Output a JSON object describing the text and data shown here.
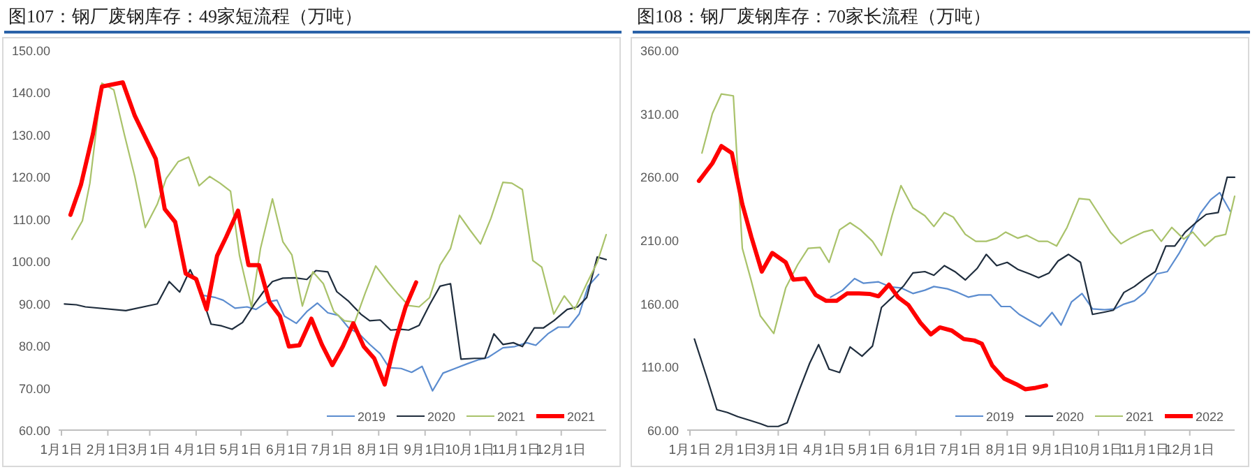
{
  "chart_data": [
    {
      "type": "line",
      "title": "图107：钢厂废钢库存：49家短流程（万吨）",
      "legend": "bottom right",
      "grid": false,
      "xlim": [
        "--01-01",
        "--12-31"
      ],
      "xticks": [
        {
          "value": "--01-01",
          "label": "1月1日"
        },
        {
          "value": "--02-01",
          "label": "2月1日"
        },
        {
          "value": "--03-01",
          "label": "3月1日"
        },
        {
          "value": "--04-01",
          "label": "4月1日"
        },
        {
          "value": "--05-01",
          "label": "5月1日"
        },
        {
          "value": "--06-01",
          "label": "6月1日"
        },
        {
          "value": "--07-01",
          "label": "7月1日"
        },
        {
          "value": "--08-01",
          "label": "8月1日"
        },
        {
          "value": "--09-01",
          "label": "9月1日"
        },
        {
          "value": "--10-01",
          "label": "10月1日"
        },
        {
          "value": "--11-01",
          "label": "11月1日"
        },
        {
          "value": "--12-01",
          "label": "12月1日"
        }
      ],
      "ylim": [
        60,
        150
      ],
      "yticks": [
        {
          "value": 60,
          "label": "60.00"
        },
        {
          "value": 70,
          "label": "70.00"
        },
        {
          "value": 80,
          "label": "80.00"
        },
        {
          "value": 90,
          "label": "90.00"
        },
        {
          "value": 100,
          "label": "100.00"
        },
        {
          "value": 110,
          "label": "110.00"
        },
        {
          "value": 120,
          "label": "120.00"
        },
        {
          "value": 130,
          "label": "130.00"
        },
        {
          "value": 140,
          "label": "140.00"
        },
        {
          "value": 150,
          "label": "150.00"
        }
      ],
      "series": [
        {
          "name": "2019",
          "color": "#5b8ccf",
          "x": [
            "--04-06",
            "--04-14",
            "--04-19",
            "--04-27",
            "--05-05",
            "--05-11",
            "--05-18",
            "--05-25",
            "--05-30",
            "--06-07",
            "--06-14",
            "--06-21",
            "--06-28",
            "--07-05",
            "--07-12",
            "--07-19",
            "--07-26",
            "--08-02",
            "--08-08",
            "--08-16",
            "--08-23",
            "--08-30",
            "--09-06",
            "--09-13",
            "--09-21",
            "--09-29",
            "--10-07",
            "--10-13",
            "--10-23",
            "--10-31",
            "--11-08",
            "--11-14",
            "--11-22",
            "--11-29",
            "--12-06",
            "--12-13",
            "--12-19",
            "--12-26"
          ],
          "values": [
            91.9,
            91.4,
            90.8,
            88.9,
            89.2,
            88.6,
            90.3,
            90.8,
            87.0,
            85.3,
            88.1,
            90.1,
            87.8,
            87.2,
            84.2,
            82.8,
            80.3,
            78.1,
            74.8,
            74.6,
            73.7,
            75.1,
            69.3,
            73.5,
            74.6,
            75.7,
            76.7,
            77.2,
            79.5,
            79.8,
            80.7,
            80.1,
            82.8,
            84.4,
            84.4,
            87.5,
            94.1,
            96.9
          ]
        },
        {
          "name": "2020",
          "color": "#1f2d3d",
          "x": [
            "--01-03",
            "--01-11",
            "--01-17",
            "--02-13",
            "--03-06",
            "--03-14",
            "--03-21",
            "--03-28",
            "--04-03",
            "--04-11",
            "--04-18",
            "--04-25",
            "--05-02",
            "--05-10",
            "--05-16",
            "--05-22",
            "--05-29",
            "--06-06",
            "--06-14",
            "--06-20",
            "--06-28",
            "--07-04",
            "--07-12",
            "--07-20",
            "--07-26",
            "--08-02",
            "--08-09",
            "--08-16",
            "--08-21",
            "--08-28",
            "--09-04",
            "--09-11",
            "--09-18",
            "--09-25",
            "--10-04",
            "--10-11",
            "--10-17",
            "--10-23",
            "--10-30",
            "--11-05",
            "--11-13",
            "--11-19",
            "--11-26",
            "--12-05",
            "--12-12",
            "--12-18",
            "--12-25",
            "--12-31"
          ],
          "values": [
            89.9,
            89.7,
            89.2,
            88.3,
            89.9,
            95.2,
            92.7,
            98.0,
            93.6,
            85.1,
            84.7,
            83.9,
            85.5,
            89.9,
            92.8,
            95.2,
            96.0,
            96.1,
            95.7,
            97.8,
            97.5,
            92.8,
            90.5,
            87.5,
            85.9,
            86.1,
            83.7,
            83.9,
            83.7,
            84.8,
            89.7,
            94.1,
            94.7,
            76.8,
            77.0,
            77.0,
            82.8,
            80.3,
            80.7,
            79.8,
            84.2,
            84.2,
            85.9,
            88.6,
            89.2,
            91.4,
            101.0,
            100.4
          ]
        },
        {
          "name": "2021",
          "color": "#a9c26a",
          "x": [
            "--01-08",
            "--01-15",
            "--01-20",
            "--01-28",
            "--02-05",
            "--02-12",
            "--02-19",
            "--02-26",
            "--03-06",
            "--03-12",
            "--03-20",
            "--03-27",
            "--04-03",
            "--04-10",
            "--04-17",
            "--04-24",
            "--04-30",
            "--05-08",
            "--05-14",
            "--05-22",
            "--05-29",
            "--06-04",
            "--06-11",
            "--06-18",
            "--06-25",
            "--07-02",
            "--07-09",
            "--07-16",
            "--07-23",
            "--07-30",
            "--08-07",
            "--08-14",
            "--08-21",
            "--08-28",
            "--09-04",
            "--09-11",
            "--09-18",
            "--09-24",
            "--10-01",
            "--10-08",
            "--10-15",
            "--10-23",
            "--10-29",
            "--11-05",
            "--11-12",
            "--11-18",
            "--11-26",
            "--12-03",
            "--12-10",
            "--12-18",
            "--12-25",
            "--12-31"
          ],
          "values": [
            105.2,
            109.6,
            118.5,
            142.2,
            140.6,
            130.1,
            120.1,
            108.0,
            113.5,
            119.6,
            123.6,
            124.7,
            117.9,
            120.1,
            118.5,
            116.6,
            101.3,
            89.2,
            103.0,
            114.8,
            104.6,
            101.5,
            89.4,
            97.5,
            94.7,
            88.1,
            85.9,
            85.6,
            92.5,
            98.9,
            95.2,
            92.2,
            89.5,
            89.2,
            91.4,
            99.1,
            103.0,
            110.9,
            107.4,
            104.1,
            110.2,
            118.7,
            118.5,
            117.0,
            100.2,
            98.6,
            87.5,
            91.8,
            88.6,
            94.7,
            99.7,
            106.3
          ]
        },
        {
          "name": "2021",
          "color": "#ff0000",
          "x": [
            "--01-07",
            "--01-14",
            "--01-22",
            "--01-28",
            "--02-04",
            "--02-11",
            "--02-19",
            "--02-25",
            "--03-05",
            "--03-11",
            "--03-18",
            "--03-25",
            "--04-01",
            "--04-08",
            "--04-15",
            "--04-21",
            "--04-29",
            "--05-06",
            "--05-13",
            "--05-20",
            "--05-27",
            "--06-02",
            "--06-09",
            "--06-17",
            "--06-24",
            "--07-01",
            "--07-08",
            "--07-15",
            "--07-22",
            "--07-29",
            "--08-05",
            "--08-12",
            "--08-19",
            "--08-26"
          ],
          "values": [
            111.0,
            118.1,
            130.1,
            141.4,
            141.9,
            142.4,
            134.5,
            130.1,
            124.3,
            112.4,
            109.3,
            97.1,
            95.8,
            88.6,
            101.3,
            105.7,
            112.0,
            99.1,
            99.1,
            90.3,
            87.0,
            79.8,
            80.1,
            86.4,
            80.3,
            75.4,
            79.8,
            85.3,
            79.8,
            77.0,
            70.8,
            80.9,
            89.2,
            95.0
          ]
        }
      ]
    },
    {
      "type": "line",
      "title": "图108：钢厂废钢库存：70家长流程（万吨）",
      "legend": "bottom right",
      "grid": false,
      "xlim": [
        "--01-01",
        "--12-31"
      ],
      "xticks": [
        {
          "value": "--01-01",
          "label": "1月1日"
        },
        {
          "value": "--02-01",
          "label": "2月1日"
        },
        {
          "value": "--03-01",
          "label": "3月1日"
        },
        {
          "value": "--04-01",
          "label": "4月1日"
        },
        {
          "value": "--05-01",
          "label": "5月1日"
        },
        {
          "value": "--06-01",
          "label": "6月1日"
        },
        {
          "value": "--07-01",
          "label": "7月1日"
        },
        {
          "value": "--08-01",
          "label": "8月1日"
        },
        {
          "value": "--09-01",
          "label": "9月1日"
        },
        {
          "value": "--10-01",
          "label": "10月1日"
        },
        {
          "value": "--11-01",
          "label": "11月1日"
        },
        {
          "value": "--12-01",
          "label": "12月1日"
        }
      ],
      "ylim": [
        60,
        360
      ],
      "yticks": [
        {
          "value": 60,
          "label": "60.00"
        },
        {
          "value": 110,
          "label": "110.00"
        },
        {
          "value": 160,
          "label": "160.00"
        },
        {
          "value": 210,
          "label": "210.00"
        },
        {
          "value": 260,
          "label": "260.00"
        },
        {
          "value": 310,
          "label": "310.00"
        },
        {
          "value": 360,
          "label": "360.00"
        }
      ],
      "series": [
        {
          "name": "2019",
          "color": "#5b8ccf",
          "x": [
            "--04-05",
            "--04-13",
            "--04-21",
            "--04-27",
            "--05-07",
            "--05-15",
            "--05-22",
            "--05-30",
            "--06-07",
            "--06-13",
            "--06-22",
            "--06-29",
            "--07-06",
            "--07-13",
            "--07-21",
            "--07-28",
            "--08-03",
            "--08-09",
            "--08-16",
            "--08-23",
            "--08-31",
            "--09-06",
            "--09-13",
            "--09-20",
            "--09-27",
            "--10-05",
            "--10-12",
            "--10-18",
            "--10-25",
            "--11-01",
            "--11-09",
            "--11-16",
            "--11-24",
            "--12-01",
            "--12-08",
            "--12-15",
            "--12-21",
            "--12-28"
          ],
          "values": [
            165.0,
            170.5,
            179.7,
            176.0,
            177.1,
            173.1,
            172.3,
            167.9,
            170.5,
            173.4,
            171.6,
            168.7,
            165.0,
            166.8,
            166.8,
            157.6,
            157.6,
            151.4,
            146.6,
            141.9,
            152.9,
            143.0,
            161.3,
            167.9,
            155.8,
            155.1,
            155.8,
            159.5,
            162.1,
            168.7,
            183.4,
            185.2,
            199.9,
            214.6,
            231.1,
            242.1,
            247.6,
            232.9
          ]
        },
        {
          "name": "2020",
          "color": "#1f2d3d",
          "x": [
            "--01-04",
            "--01-12",
            "--01-19",
            "--01-26",
            "--02-02",
            "--02-10",
            "--02-17",
            "--02-22",
            "--03-01",
            "--03-07",
            "--03-15",
            "--03-22",
            "--03-28",
            "--04-04",
            "--04-11",
            "--04-18",
            "--04-26",
            "--05-03",
            "--05-09",
            "--05-17",
            "--05-24",
            "--05-30",
            "--06-07",
            "--06-13",
            "--06-20",
            "--06-27",
            "--07-04",
            "--07-12",
            "--07-18",
            "--07-25",
            "--08-01",
            "--08-08",
            "--08-16",
            "--08-22",
            "--08-29",
            "--09-04",
            "--09-11",
            "--09-19",
            "--09-27",
            "--10-05",
            "--10-11",
            "--10-18",
            "--10-25",
            "--11-01",
            "--11-08",
            "--11-15",
            "--11-21",
            "--11-28",
            "--12-05",
            "--12-12",
            "--12-20",
            "--12-26",
            "--12-31"
          ],
          "values": [
            131.9,
            102.6,
            76.1,
            73.9,
            70.6,
            67.7,
            65.1,
            62.9,
            62.9,
            65.8,
            91.5,
            112.8,
            127.5,
            108.1,
            105.5,
            125.7,
            118.4,
            126.4,
            156.9,
            165.7,
            174.2,
            184.1,
            185.2,
            182.3,
            189.9,
            185.2,
            178.6,
            187.8,
            198.8,
            189.9,
            192.5,
            187.0,
            183.4,
            180.4,
            184.1,
            193.6,
            198.8,
            192.5,
            151.4,
            153.2,
            154.7,
            168.7,
            173.4,
            179.7,
            185.2,
            205.4,
            205.4,
            216.4,
            223.8,
            230.4,
            231.8,
            259.7,
            259.7
          ]
        },
        {
          "name": "2021",
          "color": "#a9c26a",
          "x": [
            "--01-09",
            "--01-16",
            "--01-22",
            "--01-30",
            "--02-05",
            "--02-11",
            "--02-17",
            "--02-26",
            "--03-06",
            "--03-14",
            "--03-21",
            "--03-29",
            "--04-04",
            "--04-11",
            "--04-18",
            "--04-25",
            "--05-03",
            "--05-09",
            "--05-16",
            "--05-22",
            "--05-30",
            "--06-07",
            "--06-13",
            "--06-20",
            "--06-26",
            "--07-04",
            "--07-11",
            "--07-18",
            "--07-25",
            "--07-31",
            "--08-08",
            "--08-14",
            "--08-22",
            "--08-28",
            "--09-03",
            "--09-10",
            "--09-18",
            "--09-25",
            "--10-02",
            "--10-09",
            "--10-16",
            "--10-23",
            "--10-31",
            "--11-06",
            "--11-12",
            "--11-19",
            "--11-27",
            "--12-03",
            "--12-11",
            "--12-18",
            "--12-25",
            "--12-31"
          ],
          "values": [
            278.8,
            310.1,
            325.5,
            324.0,
            203.6,
            177.8,
            150.3,
            136.3,
            172.3,
            190.7,
            203.6,
            204.3,
            192.5,
            218.2,
            223.8,
            218.2,
            209.1,
            198.0,
            229.3,
            253.1,
            235.5,
            229.3,
            220.8,
            231.8,
            228.2,
            214.6,
            209.1,
            209.1,
            211.6,
            216.4,
            211.6,
            213.8,
            209.1,
            209.1,
            205.4,
            220.1,
            242.9,
            242.1,
            229.3,
            216.4,
            207.2,
            212.0,
            216.4,
            218.2,
            209.1,
            220.1,
            210.9,
            216.4,
            205.4,
            212.7,
            214.6,
            244.7
          ]
        },
        {
          "name": "2022",
          "color": "#ff0000",
          "x": [
            "--01-07",
            "--01-16",
            "--01-22",
            "--01-29",
            "--02-05",
            "--02-11",
            "--02-18",
            "--02-25",
            "--03-06",
            "--03-11",
            "--03-19",
            "--03-26",
            "--04-02",
            "--04-09",
            "--04-16",
            "--04-24",
            "--05-01",
            "--05-07",
            "--05-14",
            "--05-20",
            "--05-27",
            "--06-04",
            "--06-11",
            "--06-17",
            "--06-25",
            "--07-03",
            "--07-10",
            "--07-15",
            "--07-22",
            "--07-30",
            "--08-07",
            "--08-13",
            "--08-20",
            "--08-27"
          ],
          "values": [
            256.8,
            270.8,
            284.3,
            278.8,
            238.4,
            212.7,
            185.2,
            199.9,
            192.5,
            178.9,
            179.7,
            166.8,
            162.1,
            162.1,
            167.9,
            167.9,
            167.6,
            165.7,
            174.9,
            165.0,
            158.8,
            144.8,
            135.6,
            141.1,
            138.6,
            131.9,
            130.8,
            128.3,
            111.0,
            100.7,
            96.3,
            92.3,
            93.4,
            95.2
          ]
        }
      ]
    }
  ]
}
